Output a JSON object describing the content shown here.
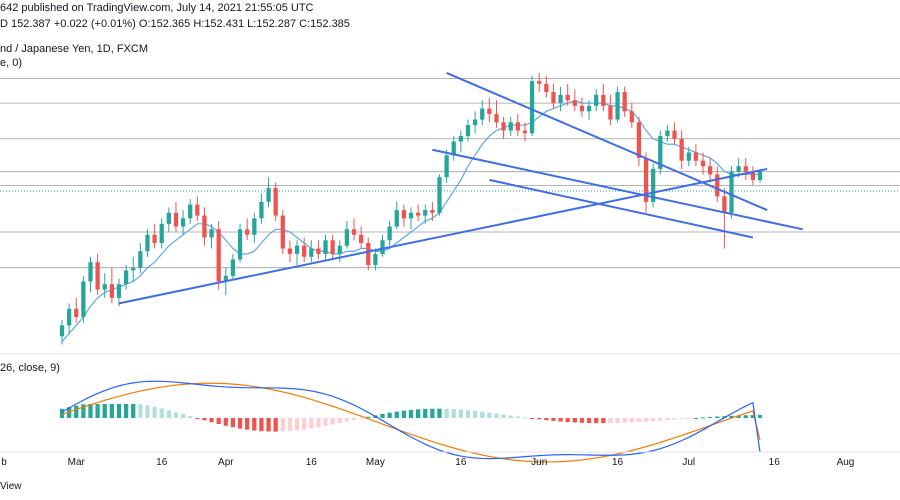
{
  "header": {
    "line1_prefix": "642 published on TradingView.com, July 14, 2021 21:55:05 UTC",
    "symbol_suffix": "D",
    "last": "152.387",
    "change": "+0.022 (+0.01%)",
    "o_label": "O:",
    "o": "152.365",
    "h_label": "H:",
    "h": "152.431",
    "l_label": "L:",
    "l": "152.287",
    "c_label": "C:",
    "c": "152.385",
    "title": "nd / Japanese Yen, 1D, FXCM",
    "indicator1": "e, 0)",
    "macd_label": "26, close, 9)"
  },
  "footer": {
    "text": "View"
  },
  "colors": {
    "up": "#26a69a",
    "down": "#ef5350",
    "trend": "#3d6ee8",
    "ma": "#5aa9e6",
    "signal": "#f57c00",
    "macd": "#2962ff",
    "hist_up": "#26a69a",
    "hist_up_light": "#b2dfdb",
    "hist_down": "#ef5350",
    "hist_down_light": "#ffcdd2"
  },
  "chart_data": {
    "type": "candlestick",
    "x_ticks": [
      "b",
      "Mar",
      "16",
      "Apr",
      "16",
      "May",
      "16",
      "Jun",
      "16",
      "Jul",
      "16",
      "Aug"
    ],
    "candles_ohlc": [
      [
        146.4,
        147.0,
        146.1,
        146.8
      ],
      [
        146.8,
        147.6,
        146.5,
        147.4
      ],
      [
        147.4,
        147.8,
        146.9,
        147.1
      ],
      [
        147.1,
        148.6,
        146.9,
        148.4
      ],
      [
        148.4,
        149.3,
        148.0,
        149.1
      ],
      [
        149.1,
        149.4,
        147.9,
        148.1
      ],
      [
        148.1,
        148.7,
        147.8,
        148.3
      ],
      [
        148.3,
        148.9,
        147.6,
        147.8
      ],
      [
        147.8,
        148.5,
        147.5,
        148.3
      ],
      [
        148.3,
        149.0,
        148.1,
        148.8
      ],
      [
        148.8,
        149.3,
        148.4,
        148.9
      ],
      [
        148.9,
        149.8,
        148.7,
        149.5
      ],
      [
        149.5,
        150.3,
        149.3,
        150.1
      ],
      [
        150.1,
        150.5,
        149.6,
        149.8
      ],
      [
        149.8,
        150.7,
        149.6,
        150.5
      ],
      [
        150.5,
        151.1,
        150.2,
        150.9
      ],
      [
        150.9,
        151.3,
        150.2,
        150.4
      ],
      [
        150.4,
        151.0,
        150.1,
        150.7
      ],
      [
        150.7,
        151.4,
        150.5,
        151.2
      ],
      [
        151.2,
        151.5,
        150.6,
        150.8
      ],
      [
        150.8,
        151.1,
        149.7,
        150.0
      ],
      [
        150.0,
        150.5,
        149.6,
        150.3
      ],
      [
        150.3,
        150.6,
        148.1,
        148.4
      ],
      [
        148.4,
        148.9,
        147.9,
        148.6
      ],
      [
        148.6,
        149.4,
        148.5,
        149.2
      ],
      [
        149.2,
        150.5,
        149.1,
        150.3
      ],
      [
        150.3,
        150.7,
        149.9,
        150.1
      ],
      [
        150.1,
        150.9,
        149.8,
        150.7
      ],
      [
        150.7,
        151.6,
        150.5,
        151.3
      ],
      [
        151.3,
        152.2,
        151.1,
        151.8
      ],
      [
        151.8,
        152.0,
        150.6,
        150.8
      ],
      [
        150.8,
        151.0,
        149.4,
        149.6
      ],
      [
        149.6,
        149.9,
        149.1,
        149.4
      ],
      [
        149.4,
        149.9,
        149.0,
        149.7
      ],
      [
        149.7,
        150.0,
        149.1,
        149.3
      ],
      [
        149.3,
        149.9,
        149.1,
        149.6
      ],
      [
        149.6,
        149.9,
        149.2,
        149.4
      ],
      [
        149.4,
        150.1,
        149.2,
        149.9
      ],
      [
        149.9,
        150.1,
        149.2,
        149.4
      ],
      [
        149.4,
        149.9,
        149.1,
        149.7
      ],
      [
        149.7,
        150.6,
        149.6,
        150.3
      ],
      [
        150.3,
        150.7,
        149.9,
        150.1
      ],
      [
        150.1,
        150.4,
        149.6,
        149.8
      ],
      [
        149.8,
        150.0,
        148.8,
        149.0
      ],
      [
        149.0,
        149.6,
        148.8,
        149.4
      ],
      [
        149.4,
        150.1,
        149.3,
        149.9
      ],
      [
        149.9,
        150.6,
        149.7,
        150.4
      ],
      [
        150.4,
        151.3,
        150.3,
        151.0
      ],
      [
        151.0,
        151.2,
        150.4,
        150.7
      ],
      [
        150.7,
        151.1,
        150.3,
        150.9
      ],
      [
        150.9,
        151.2,
        150.6,
        150.8
      ],
      [
        150.8,
        151.2,
        150.5,
        151.0
      ],
      [
        151.0,
        151.3,
        150.6,
        150.9
      ],
      [
        150.9,
        152.3,
        150.8,
        152.2
      ],
      [
        152.2,
        153.2,
        152.0,
        153.0
      ],
      [
        153.0,
        153.7,
        152.8,
        153.5
      ],
      [
        153.5,
        153.9,
        153.1,
        153.7
      ],
      [
        153.7,
        154.3,
        153.5,
        154.1
      ],
      [
        154.1,
        154.6,
        153.8,
        154.3
      ],
      [
        154.3,
        155.0,
        154.1,
        154.7
      ],
      [
        154.7,
        155.1,
        154.2,
        154.5
      ],
      [
        154.5,
        155.0,
        154.0,
        154.2
      ],
      [
        154.2,
        154.4,
        153.6,
        153.9
      ],
      [
        153.9,
        154.4,
        153.7,
        154.2
      ],
      [
        154.2,
        154.5,
        153.7,
        153.9
      ],
      [
        153.9,
        154.2,
        153.5,
        153.8
      ],
      [
        153.8,
        155.9,
        153.7,
        155.7
      ],
      [
        155.7,
        156.0,
        155.3,
        155.6
      ],
      [
        155.6,
        155.9,
        155.1,
        155.3
      ],
      [
        155.3,
        155.6,
        154.7,
        154.9
      ],
      [
        154.9,
        155.5,
        154.6,
        155.2
      ],
      [
        155.2,
        155.6,
        154.8,
        155.0
      ],
      [
        155.0,
        155.4,
        154.6,
        154.8
      ],
      [
        154.8,
        155.1,
        154.4,
        154.6
      ],
      [
        154.6,
        155.0,
        154.3,
        154.8
      ],
      [
        154.8,
        155.4,
        154.6,
        155.2
      ],
      [
        155.2,
        155.6,
        154.6,
        154.8
      ],
      [
        154.8,
        155.2,
        154.1,
        154.3
      ],
      [
        154.3,
        155.5,
        154.2,
        155.3
      ],
      [
        155.3,
        155.5,
        154.4,
        154.6
      ],
      [
        154.6,
        154.9,
        154.0,
        154.2
      ],
      [
        154.2,
        154.4,
        152.6,
        152.9
      ],
      [
        152.9,
        153.1,
        150.9,
        151.3
      ],
      [
        151.3,
        152.7,
        151.1,
        152.5
      ],
      [
        152.5,
        153.9,
        152.3,
        153.7
      ],
      [
        153.7,
        154.1,
        153.5,
        153.9
      ],
      [
        153.9,
        154.2,
        153.4,
        153.6
      ],
      [
        153.6,
        153.9,
        152.5,
        152.8
      ],
      [
        152.8,
        153.3,
        152.6,
        153.1
      ],
      [
        153.1,
        153.4,
        152.6,
        152.8
      ],
      [
        152.8,
        153.1,
        152.3,
        152.6
      ],
      [
        152.6,
        152.9,
        152.0,
        152.3
      ],
      [
        152.3,
        152.6,
        151.3,
        151.5
      ],
      [
        151.5,
        151.8,
        149.6,
        150.9
      ],
      [
        150.9,
        152.6,
        150.7,
        152.4
      ],
      [
        152.4,
        152.9,
        152.2,
        152.6
      ],
      [
        152.6,
        152.9,
        152.1,
        152.4
      ],
      [
        152.4,
        152.6,
        151.9,
        152.1
      ],
      [
        152.1,
        152.4,
        152.0,
        152.4
      ]
    ],
    "ma_values": [
      146.2,
      146.5,
      146.8,
      147.1,
      147.5,
      147.8,
      148.0,
      148.1,
      148.2,
      148.3,
      148.4,
      148.6,
      148.9,
      149.1,
      149.4,
      149.7,
      149.9,
      150.1,
      150.3,
      150.5,
      150.5,
      150.4,
      150.2,
      149.9,
      149.6,
      149.4,
      149.4,
      149.5,
      149.8,
      150.1,
      150.3,
      150.3,
      150.2,
      150.0,
      149.8,
      149.6,
      149.5,
      149.5,
      149.4,
      149.4,
      149.5,
      149.5,
      149.6,
      149.6,
      149.5,
      149.5,
      149.6,
      149.8,
      150.0,
      150.2,
      150.4,
      150.6,
      150.7,
      150.9,
      151.3,
      151.7,
      152.1,
      152.6,
      153.0,
      153.4,
      153.7,
      153.9,
      154.0,
      154.1,
      154.1,
      154.1,
      154.2,
      154.4,
      154.6,
      154.7,
      154.8,
      154.9,
      155.0,
      154.9,
      154.9,
      154.9,
      154.9,
      154.8,
      154.8,
      154.7,
      154.6,
      154.3,
      153.9,
      153.6,
      153.5,
      153.4,
      153.4,
      153.3,
      153.2,
      153.1,
      153.0,
      152.9,
      152.7,
      152.4,
      152.3,
      152.3,
      152.3,
      152.3,
      152.3
    ],
    "macd": {
      "macd_line": [
        0.3,
        0.4,
        0.5,
        0.58,
        0.7,
        0.75,
        0.8,
        0.85,
        0.88,
        0.9,
        0.95,
        1.0
      ],
      "signal_line": [
        0.2,
        0.28,
        0.36,
        0.45,
        0.55,
        0.62,
        0.7,
        0.76,
        0.82,
        0.86,
        0.9,
        0.94
      ],
      "final_macd": -0.85,
      "final_signal": -0.55
    },
    "trendlines": [
      {
        "from": [
          8,
          147.6
        ],
        "to": [
          99,
          152.5
        ]
      },
      {
        "from": [
          52,
          153.2
        ],
        "to": [
          104,
          150.3
        ]
      },
      {
        "from": [
          54,
          156.0
        ],
        "to": [
          99,
          151.0
        ]
      },
      {
        "from": [
          60,
          152.1
        ],
        "to": [
          97,
          150.0
        ]
      }
    ],
    "price_levels": [
      155.8,
      154.9,
      153.6,
      152.4,
      151.9,
      150.2,
      148.9
    ],
    "ylim": [
      145.9,
      157.2
    ]
  }
}
